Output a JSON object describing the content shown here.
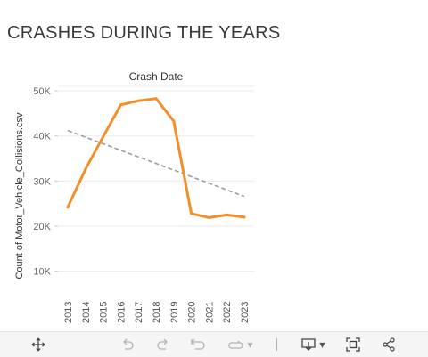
{
  "page_title": "CRASHES DURING THE YEARS",
  "chart_data": {
    "type": "line",
    "title": "Crash Date",
    "ylabel": "Count of Motor_Vehicle_Collisions.csv",
    "xlabel": "",
    "categories": [
      "2013",
      "2014",
      "2015",
      "2016",
      "2017",
      "2018",
      "2019",
      "2020",
      "2021",
      "2022",
      "2023"
    ],
    "series": [
      {
        "values": [
          24200,
          32600,
          39800,
          46900,
          47800,
          48300,
          43300,
          22800,
          21900,
          22500,
          22000
        ],
        "color": "#f0902d"
      }
    ],
    "trend_line": {
      "start": 41200,
      "end": 26600,
      "color": "#9e9e9e",
      "style": "dashed"
    },
    "ylim": [
      5000,
      51000
    ],
    "yticks": [
      10000,
      20000,
      30000,
      40000,
      50000
    ],
    "ytick_labels": [
      "10K",
      "20K",
      "30K",
      "40K",
      "50K"
    ],
    "grid": true
  },
  "toolbar": {
    "move_icon": "move-icon",
    "undo_icon": "undo-icon",
    "redo_icon": "redo-icon",
    "revert_icon": "revert-icon",
    "refresh_icon": "refresh-icon",
    "download_icon": "download-icon",
    "fullscreen_icon": "fullscreen-icon",
    "share_icon": "share-icon"
  }
}
